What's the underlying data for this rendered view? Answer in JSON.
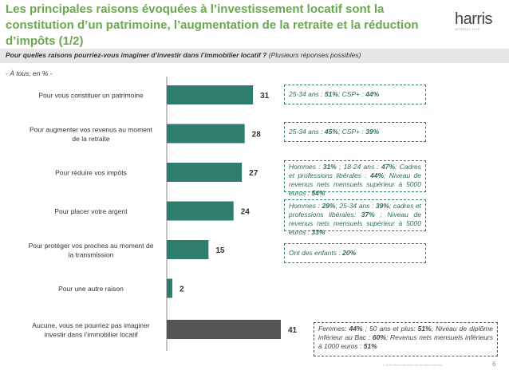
{
  "header": {
    "title": "Les principales raisons évoquées à l’investissement locatif sont la constitution d’un patrimoine, l’augmentation de la retraite et la réduction d’impôts (1/2)",
    "logo_word": "harris",
    "logo_sub": "INTERACTIVE"
  },
  "question": {
    "main": "Pour quelles raisons pourriez-vous imaginer d’investir dans l’immobilier locatif ?",
    "note": "(Plusieurs réponses possibles)"
  },
  "base": "- À tous, en % -",
  "colors": {
    "bar": "#2e7d6e",
    "bar_last": "#555555",
    "title": "#6aa84f"
  },
  "chart_data": {
    "type": "bar",
    "orientation": "horizontal",
    "categories": [
      [
        "Pour vous constituer un patrimoine"
      ],
      [
        "Pour augmenter vos revenus au moment",
        "de la retraite"
      ],
      [
        "Pour réduire vos impôts"
      ],
      [
        "Pour placer votre argent"
      ],
      [
        "Pour protéger vos proches au moment de",
        "la transmission"
      ],
      [
        "Pour une autre raison"
      ],
      [
        "Aucune, vous ne pourriez pas imaginer",
        "investir dans l’immobilier locatif"
      ]
    ],
    "values": [
      31,
      28,
      27,
      24,
      15,
      2,
      41
    ],
    "xlim": [
      0,
      41
    ]
  },
  "notes": [
    [
      {
        "t": "25-34 ans : "
      },
      {
        "t": "51%",
        "b": true
      },
      {
        "t": "; CSP+ : "
      },
      {
        "t": "44%",
        "b": true
      }
    ],
    [
      {
        "t": "25-34 ans : "
      },
      {
        "t": "45%",
        "b": true
      },
      {
        "t": "; CSP+ : "
      },
      {
        "t": "39%",
        "b": true
      }
    ],
    [
      {
        "t": "Hommes : "
      },
      {
        "t": "31%",
        "b": true
      },
      {
        "t": " ; 18-24 ans : "
      },
      {
        "t": "47%",
        "b": true
      },
      {
        "t": "; Cadres et professions libérales : "
      },
      {
        "t": "44%",
        "b": true
      },
      {
        "t": "; Niveau de revenus nets mensuels supérieur à 5000 euros : "
      },
      {
        "t": "54%",
        "b": true
      }
    ],
    [
      {
        "t": "Hommes : "
      },
      {
        "t": "29%",
        "b": true
      },
      {
        "t": "; 25-34 ans : "
      },
      {
        "t": "39%",
        "b": true
      },
      {
        "t": "; cadres et professions libérales: "
      },
      {
        "t": "37%",
        "b": true
      },
      {
        "t": " ; Niveau de revenus nets mensuels supérieur à 5000 euros : "
      },
      {
        "t": "33%",
        "b": true
      }
    ],
    [
      {
        "t": "Ont des enfants : "
      },
      {
        "t": "20%",
        "b": true
      }
    ],
    [],
    [
      {
        "t": "Femmes: "
      },
      {
        "t": "44%",
        "b": true
      },
      {
        "t": " ; 50 ans et plus: "
      },
      {
        "t": "51%",
        "b": true
      },
      {
        "t": "; Niveau de diplôme inférieur au Bac : "
      },
      {
        "t": "60%",
        "b": true
      },
      {
        "t": "; Revenus nets mensuels inférieurs à 1000 euros : "
      },
      {
        "t": "51%",
        "b": true
      }
    ]
  ],
  "page_number": "6",
  "copyright": "© 2015 Harris Interactive Inc. All rights reserved."
}
